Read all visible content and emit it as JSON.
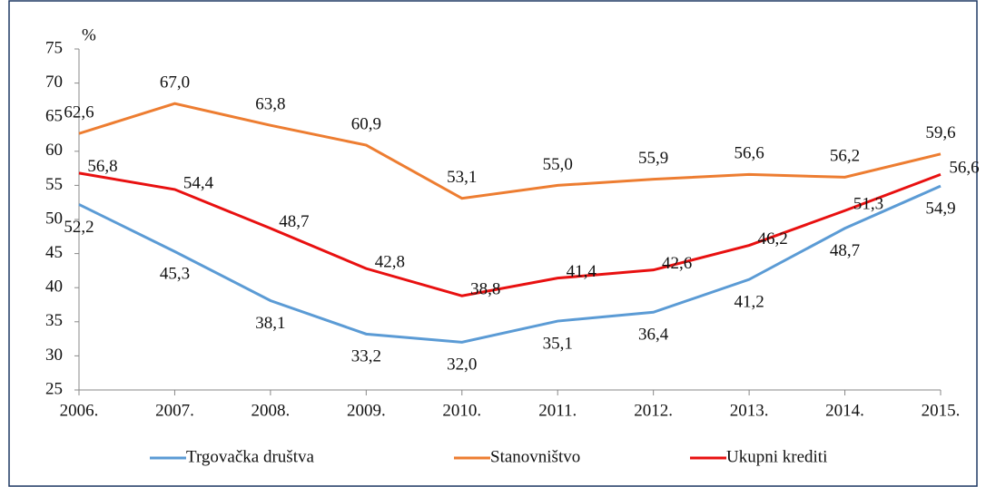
{
  "chart_data": {
    "type": "line",
    "y_label": "%",
    "categories": [
      "2006.",
      "2007.",
      "2008.",
      "2009.",
      "2010.",
      "2011.",
      "2012.",
      "2013.",
      "2014.",
      "2015."
    ],
    "series": [
      {
        "name": "Trgovačka društva",
        "color": "#5b9bd5",
        "values": [
          52.2,
          45.3,
          38.1,
          33.2,
          32.0,
          35.1,
          36.4,
          41.2,
          48.7,
          54.9
        ],
        "value_labels": [
          "52,2",
          "45,3",
          "38,1",
          "33,2",
          "32,0",
          "35,1",
          "36,4",
          "41,2",
          "48,7",
          "54,9"
        ]
      },
      {
        "name": "Stanovništvo",
        "color": "#ed7d31",
        "values": [
          62.6,
          67.0,
          63.8,
          60.9,
          53.1,
          55.0,
          55.9,
          56.6,
          56.2,
          59.6
        ],
        "value_labels": [
          "62,6",
          "67,0",
          "63,8",
          "60,9",
          "53,1",
          "55,0",
          "55,9",
          "56,6",
          "56,2",
          "59,6"
        ]
      },
      {
        "name": "Ukupni krediti",
        "color": "#e81010",
        "values": [
          56.8,
          54.4,
          48.7,
          42.8,
          38.8,
          41.4,
          42.6,
          46.2,
          51.3,
          56.6
        ],
        "value_labels": [
          "56,8",
          "54,4",
          "48,7",
          "42,8",
          "38,8",
          "41,4",
          "42,6",
          "46,2",
          "51,3",
          "56,6"
        ]
      }
    ],
    "ylim": [
      25,
      75
    ],
    "yticks": [
      25,
      30,
      35,
      40,
      45,
      50,
      55,
      60,
      65,
      70,
      75
    ],
    "grid": false
  }
}
